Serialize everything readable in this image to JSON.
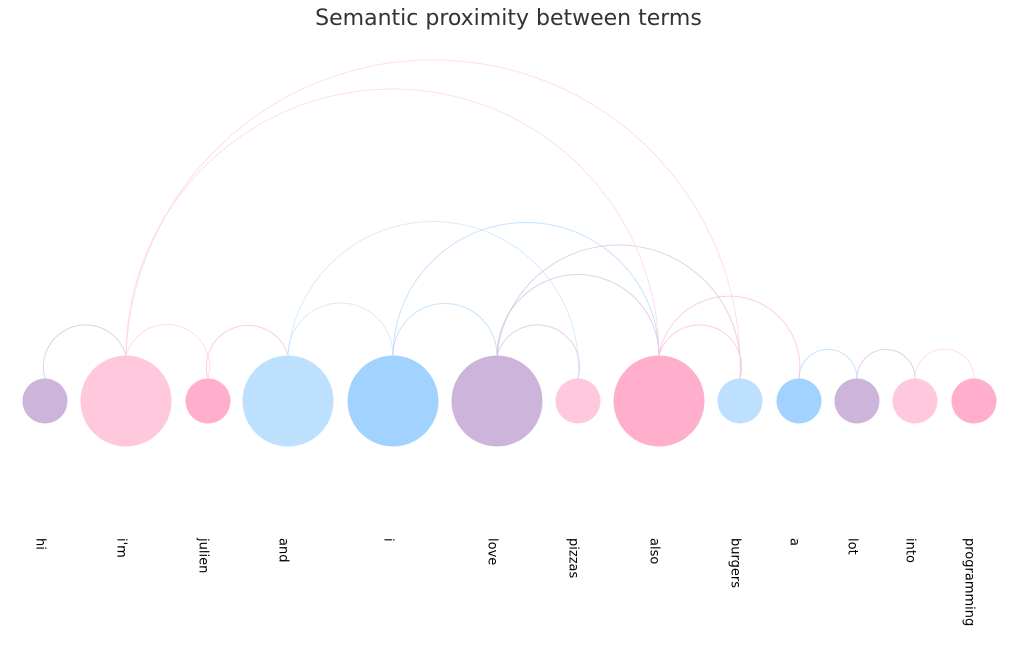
{
  "title": "Semantic proximity between terms",
  "palette": [
    "#cdb4db",
    "#ffc8dd",
    "#ffafcc",
    "#bde0fe",
    "#a2d2ff"
  ],
  "nodes": [
    {
      "label": "hi",
      "weight": 1,
      "color": "#cdb4db"
    },
    {
      "label": "i'm",
      "weight": 4,
      "color": "#ffc8dd"
    },
    {
      "label": "julien",
      "weight": 1,
      "color": "#ffafcc"
    },
    {
      "label": "and",
      "weight": 4,
      "color": "#bde0fe"
    },
    {
      "label": "i",
      "weight": 4,
      "color": "#a2d2ff"
    },
    {
      "label": "love",
      "weight": 4,
      "color": "#cdb4db"
    },
    {
      "label": "pizzas",
      "weight": 1,
      "color": "#ffc8dd"
    },
    {
      "label": "also",
      "weight": 4,
      "color": "#ffafcc"
    },
    {
      "label": "burgers",
      "weight": 1,
      "color": "#bde0fe"
    },
    {
      "label": "a",
      "weight": 1,
      "color": "#a2d2ff"
    },
    {
      "label": "lot",
      "weight": 1,
      "color": "#cdb4db"
    },
    {
      "label": "into",
      "weight": 1,
      "color": "#ffc8dd"
    },
    {
      "label": "programming",
      "weight": 1,
      "color": "#ffafcc"
    }
  ],
  "links": [
    {
      "source": "hi",
      "target": "i'm"
    },
    {
      "source": "i'm",
      "target": "julien"
    },
    {
      "source": "julien",
      "target": "and"
    },
    {
      "source": "and",
      "target": "i"
    },
    {
      "source": "i",
      "target": "love"
    },
    {
      "source": "love",
      "target": "pizzas"
    },
    {
      "source": "also",
      "target": "burgers"
    },
    {
      "source": "a",
      "target": "lot"
    },
    {
      "source": "lot",
      "target": "into"
    },
    {
      "source": "into",
      "target": "programming"
    },
    {
      "source": "and",
      "target": "pizzas"
    },
    {
      "source": "i",
      "target": "also"
    },
    {
      "source": "love",
      "target": "burgers"
    },
    {
      "source": "love",
      "target": "also"
    },
    {
      "source": "also",
      "target": "a"
    },
    {
      "source": "i'm",
      "target": "also"
    },
    {
      "source": "i'm",
      "target": "burgers"
    }
  ]
}
